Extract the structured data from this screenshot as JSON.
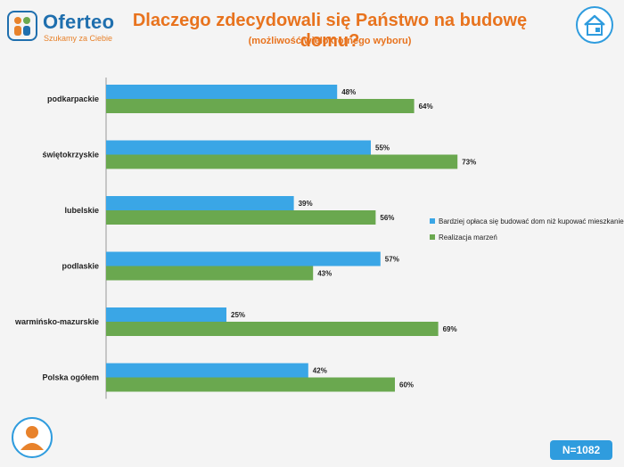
{
  "header": {
    "brand": "Oferteo",
    "tagline": "Szukamy za Ciebie",
    "title": "Dlaczego zdecydowali się Państwo na budowę domu?",
    "subtitle": "(możliwość wielokrotnego wyboru)"
  },
  "footer": {
    "sample_size": "N=1082"
  },
  "icons": {
    "house": "house-icon",
    "person": "person-icon"
  },
  "colors": {
    "accent": "#e8731e",
    "brand_blue": "#1f6fae",
    "series_blue": "#3aa6e6",
    "series_green": "#6aa84f"
  },
  "chart_data": {
    "type": "bar",
    "orientation": "horizontal",
    "categories": [
      "podkarpackie",
      "świętokrzyskie",
      "lubelskie",
      "podlaskie",
      "warmińsko-mazurskie",
      "Polska ogółem"
    ],
    "series": [
      {
        "name": "Bardziej opłaca się budować dom niż kupować mieszkanie",
        "values": [
          48,
          55,
          39,
          57,
          25,
          42
        ],
        "labels": [
          "48%",
          "55%",
          "39%",
          "57%",
          "25%",
          "42%"
        ],
        "color": "#3aa6e6"
      },
      {
        "name": "Realizacja marzeń",
        "values": [
          64,
          73,
          56,
          43,
          69,
          60
        ],
        "labels": [
          "64%",
          "73%",
          "56%",
          "43%",
          "69%",
          "60%"
        ],
        "color": "#6aa84f"
      }
    ],
    "xlim": [
      0,
      100
    ],
    "legend": "right",
    "grid": false
  }
}
